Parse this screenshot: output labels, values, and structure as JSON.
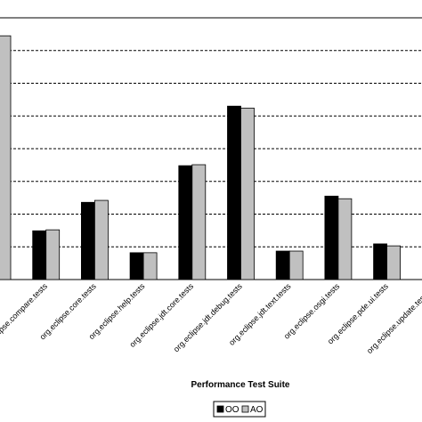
{
  "chart_data": {
    "type": "bar",
    "x_label": "Performance Test Suite",
    "categories": [
      null,
      "org.eclipse.compare.tests",
      "org.eclipse.core.tests",
      "org.eclipse.help.tests",
      "org.eclipse.jdt.core.tests",
      "org.eclipse.jdt.debug.tests",
      "org.eclipse.jdt.text.tests",
      "org.eclipse.osgi.tests",
      "org.eclipse.pde.ui.tests",
      "org.eclipse.update.tests.co"
    ],
    "series": [
      {
        "name": "OO",
        "color": "#000000",
        "values": [
          null,
          1.49,
          2.36,
          0.82,
          3.48,
          5.3,
          0.87,
          2.55,
          1.09,
          null
        ]
      },
      {
        "name": "AO",
        "color": "#c0c0c0",
        "values": [
          7.45,
          1.52,
          2.42,
          0.82,
          3.51,
          5.24,
          0.87,
          2.47,
          1.03,
          null
        ]
      }
    ],
    "ylim": [
      0,
      8
    ],
    "yticks": [
      0,
      1,
      2,
      3,
      4,
      5,
      6,
      7,
      8
    ],
    "grid": true
  }
}
